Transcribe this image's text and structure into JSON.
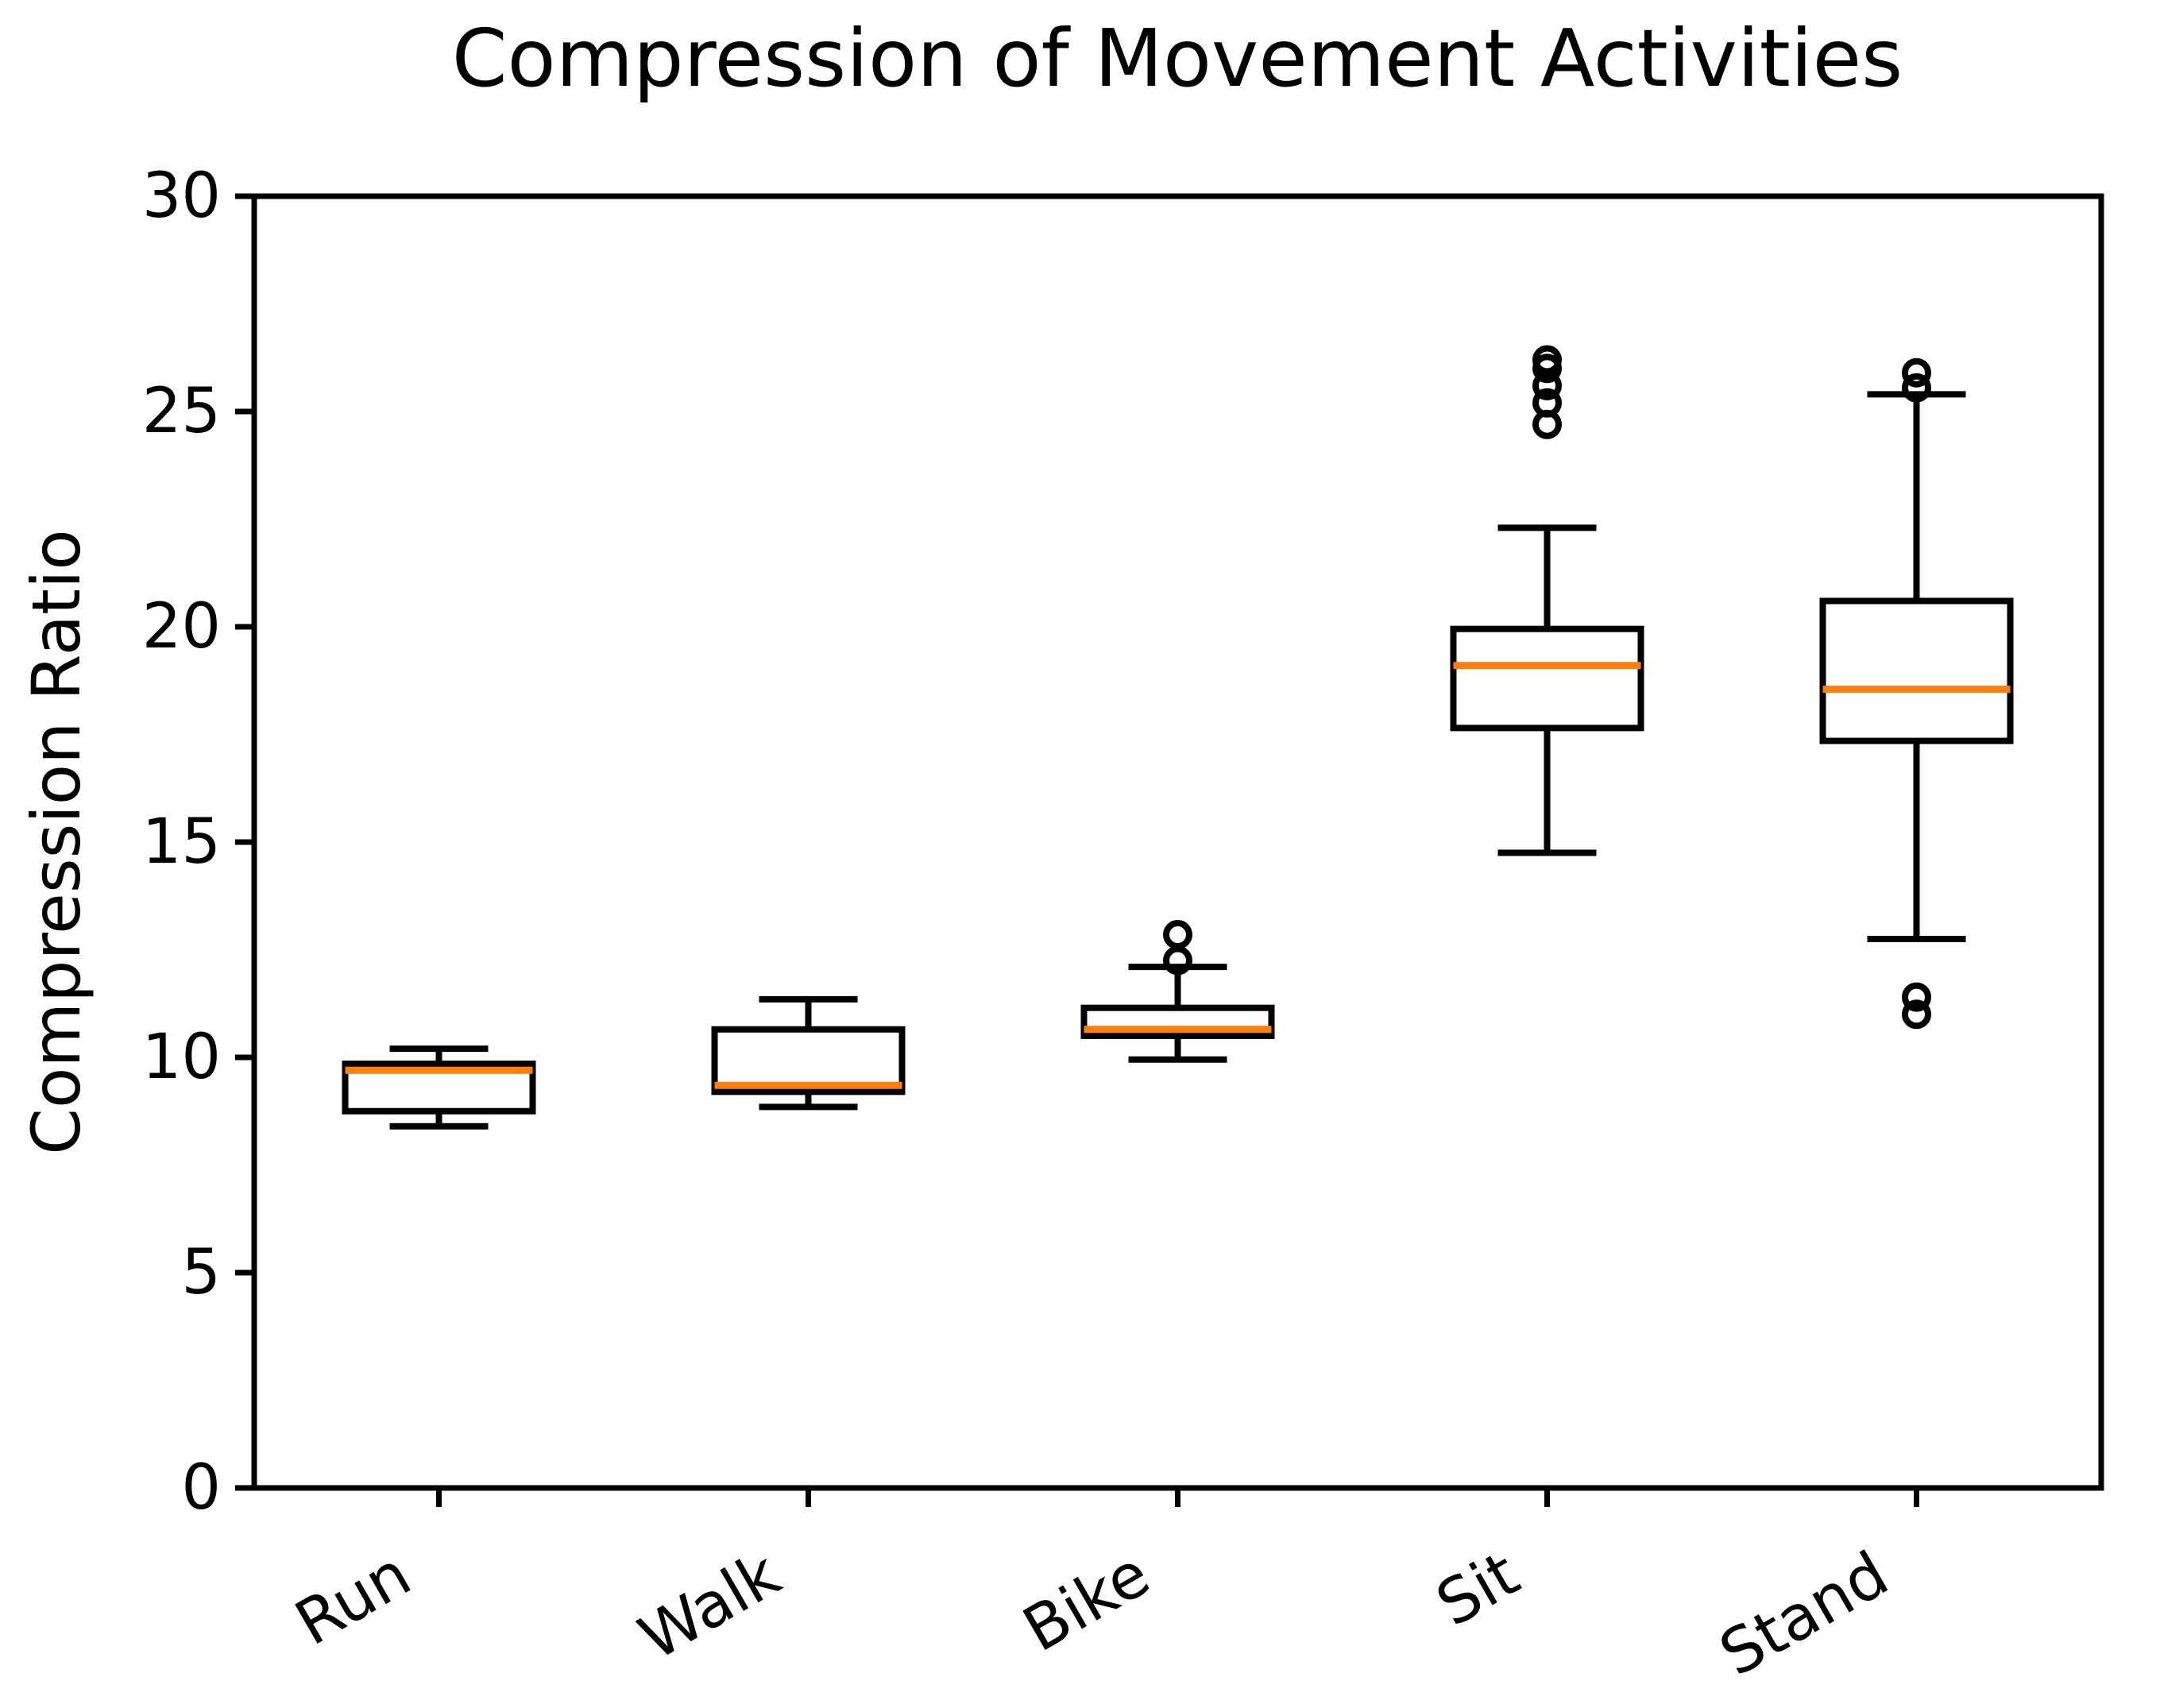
{
  "chart_data": {
    "type": "box",
    "title": "Compression of Movement Activities",
    "ylabel": "Compression Ratio",
    "xlabel": "",
    "categories": [
      "Run",
      "Walk",
      "Bike",
      "Sit",
      "Stand"
    ],
    "ylim": [
      0,
      30
    ],
    "yticks": [
      0,
      5,
      10,
      15,
      20,
      25,
      30
    ],
    "xtick_rotation_deg": 30,
    "grid": false,
    "legend": "none",
    "background": "#FFFFFF",
    "box_color": "#000000",
    "median_color": "#FF7F0E",
    "boxes": [
      {
        "category": "Run",
        "whisker_low": 8.4,
        "q1": 8.75,
        "median": 9.7,
        "q3": 9.85,
        "whisker_high": 10.2,
        "outliers": []
      },
      {
        "category": "Walk",
        "whisker_low": 8.85,
        "q1": 9.2,
        "median": 9.35,
        "q3": 10.65,
        "whisker_high": 11.35,
        "outliers": []
      },
      {
        "category": "Bike",
        "whisker_low": 9.95,
        "q1": 10.5,
        "median": 10.65,
        "q3": 11.15,
        "whisker_high": 12.1,
        "outliers": [
          12.25,
          12.85
        ]
      },
      {
        "category": "Sit",
        "whisker_low": 14.75,
        "q1": 17.65,
        "median": 19.1,
        "q3": 19.95,
        "whisker_high": 22.3,
        "outliers": [
          24.7,
          25.2,
          25.6,
          26.0,
          26.2
        ]
      },
      {
        "category": "Stand",
        "whisker_low": 12.75,
        "q1": 17.35,
        "median": 18.55,
        "q3": 20.6,
        "whisker_high": 25.4,
        "outliers": [
          25.9,
          25.55,
          11.4,
          11.0
        ]
      }
    ]
  }
}
